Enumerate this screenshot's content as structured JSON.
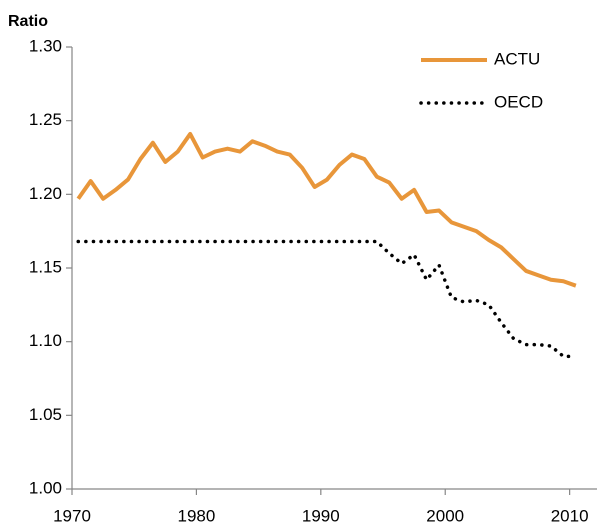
{
  "chart_data": {
    "type": "line",
    "y_label": "Ratio",
    "x": [
      1970.5,
      1971.5,
      1972.5,
      1973.5,
      1974.5,
      1975.5,
      1976.5,
      1977.5,
      1978.5,
      1979.5,
      1980.5,
      1981.5,
      1982.5,
      1983.5,
      1984.5,
      1985.5,
      1986.5,
      1987.5,
      1988.5,
      1989.5,
      1990.5,
      1991.5,
      1992.5,
      1993.5,
      1994.5,
      1995.5,
      1996.5,
      1997.5,
      1998.5,
      1999.5,
      2000.5,
      2001.5,
      2002.5,
      2003.5,
      2004.5,
      2005.5,
      2006.5,
      2007.5,
      2008.5,
      2009.5,
      2010.5
    ],
    "series": [
      {
        "name": "ACTU",
        "color": "#e8963a",
        "dash": "solid",
        "values": [
          1.197,
          1.209,
          1.197,
          1.203,
          1.21,
          1.224,
          1.235,
          1.222,
          1.229,
          1.241,
          1.225,
          1.229,
          1.231,
          1.229,
          1.236,
          1.233,
          1.229,
          1.227,
          1.218,
          1.205,
          1.21,
          1.22,
          1.227,
          1.224,
          1.212,
          1.208,
          1.197,
          1.203,
          1.188,
          1.189,
          1.181,
          1.178,
          1.175,
          1.169,
          1.164,
          1.156,
          1.148,
          1.145,
          1.142,
          1.141,
          1.138
        ]
      },
      {
        "name": "OECD",
        "color": "#000000",
        "dash": "dotted",
        "values": [
          1.168,
          1.168,
          1.168,
          1.168,
          1.168,
          1.168,
          1.168,
          1.168,
          1.168,
          1.168,
          1.168,
          1.168,
          1.168,
          1.168,
          1.168,
          1.168,
          1.168,
          1.168,
          1.168,
          1.168,
          1.168,
          1.168,
          1.168,
          1.168,
          1.168,
          1.16,
          1.153,
          1.159,
          1.142,
          1.152,
          1.13,
          1.127,
          1.128,
          1.125,
          1.113,
          1.102,
          1.098,
          1.098,
          1.097,
          1.09,
          1.09
        ]
      }
    ],
    "xlim": [
      1970,
      2012.2
    ],
    "xticks": [
      1970,
      1980,
      1990,
      2000,
      2010
    ],
    "ylim": [
      1.0,
      1.3
    ],
    "yticks": [
      {
        "value": 1.0,
        "label": "1.00"
      },
      {
        "value": 1.05,
        "label": "1.05"
      },
      {
        "value": 1.1,
        "label": "1.10"
      },
      {
        "value": 1.15,
        "label": "1.15"
      },
      {
        "value": 1.2,
        "label": "1.20"
      },
      {
        "value": 1.25,
        "label": "1.25"
      },
      {
        "value": 1.3,
        "label": "1.30"
      }
    ],
    "grid": false,
    "legend": "upper right"
  }
}
